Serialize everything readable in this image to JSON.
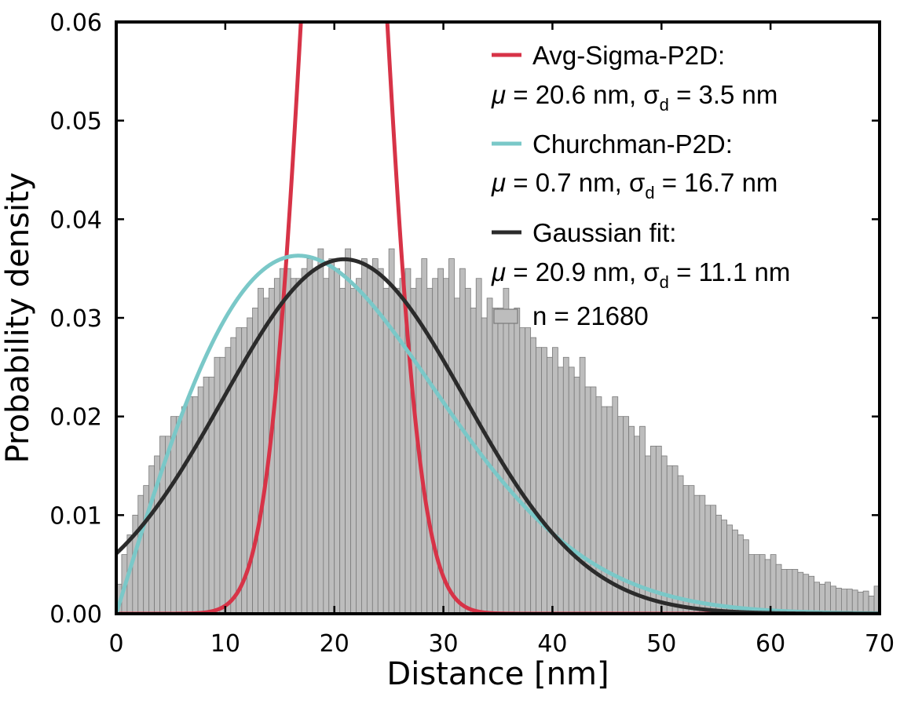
{
  "chart_data": {
    "type": "bar",
    "xlabel": "Distance [nm]",
    "ylabel": "Probability density",
    "xlim": [
      0,
      70
    ],
    "ylim": [
      0,
      0.06
    ],
    "x_ticks": [
      "0",
      "10",
      "20",
      "30",
      "40",
      "50",
      "60",
      "70"
    ],
    "y_ticks": [
      "0.00",
      "0.01",
      "0.02",
      "0.03",
      "0.04",
      "0.05",
      "0.06"
    ],
    "grid": false,
    "legend_position": "top-right",
    "histogram": {
      "name": "n = 21680",
      "color": "#bdbdbd",
      "edge_color": "#7a7a7a",
      "bin_width": 0.5,
      "x_start": 0,
      "values": [
        0.003,
        0.006,
        0.008,
        0.01,
        0.012,
        0.013,
        0.015,
        0.016,
        0.018,
        0.018,
        0.02,
        0.02,
        0.021,
        0.022,
        0.022,
        0.023,
        0.024,
        0.024,
        0.026,
        0.026,
        0.027,
        0.028,
        0.029,
        0.029,
        0.03,
        0.031,
        0.033,
        0.032,
        0.033,
        0.034,
        0.035,
        0.035,
        0.034,
        0.034,
        0.035,
        0.036,
        0.035,
        0.037,
        0.034,
        0.036,
        0.035,
        0.033,
        0.037,
        0.033,
        0.034,
        0.036,
        0.035,
        0.036,
        0.035,
        0.033,
        0.037,
        0.033,
        0.034,
        0.035,
        0.033,
        0.034,
        0.036,
        0.033,
        0.034,
        0.035,
        0.034,
        0.036,
        0.032,
        0.035,
        0.033,
        0.031,
        0.034,
        0.03,
        0.032,
        0.031,
        0.031,
        0.033,
        0.03,
        0.031,
        0.029,
        0.029,
        0.028,
        0.027,
        0.027,
        0.026,
        0.027,
        0.025,
        0.026,
        0.025,
        0.024,
        0.026,
        0.023,
        0.023,
        0.022,
        0.021,
        0.021,
        0.022,
        0.02,
        0.02,
        0.019,
        0.018,
        0.019,
        0.016,
        0.017,
        0.017,
        0.016,
        0.015,
        0.015,
        0.014,
        0.013,
        0.013,
        0.012,
        0.012,
        0.011,
        0.011,
        0.01,
        0.0095,
        0.009,
        0.0085,
        0.008,
        0.0075,
        0.006,
        0.006,
        0.006,
        0.0055,
        0.006,
        0.005,
        0.0045,
        0.0045,
        0.0045,
        0.0042,
        0.004,
        0.0038,
        0.0032,
        0.003,
        0.0032,
        0.0028,
        0.0026,
        0.0025,
        0.0025,
        0.0024,
        0.0022,
        0.0023,
        0.0018,
        0.0028,
        0.0026,
        0.0016,
        0.0016,
        0.0011,
        0.0012,
        0.0011,
        0.001,
        0.0009,
        0.0008,
        0.0007,
        0.0006,
        0.0005,
        0.0006,
        0.0004,
        0.0005,
        0.0003,
        0.0002,
        0.0002,
        0.0001,
        0.0001
      ]
    },
    "series": [
      {
        "name": "Avg-Sigma-P2D:",
        "color": "#d73347",
        "model": "p2d",
        "mu": 20.6,
        "sigma": 3.5,
        "params": "μ = 20.6 nm, σ_d = 3.5 nm"
      },
      {
        "name": "Churchman-P2D:",
        "color": "#7ac8c8",
        "model": "p2d",
        "mu": 0.7,
        "sigma": 16.7,
        "params": "μ = 0.7 nm, σ_d = 16.7 nm"
      },
      {
        "name": "Gaussian fit:",
        "color": "#2b2b2b",
        "model": "gaussian",
        "mu": 20.9,
        "sigma": 11.1,
        "params": "μ = 20.9 nm, σ_d = 11.1 nm"
      }
    ]
  },
  "legend": {
    "entries": [
      {
        "label": "Avg-Sigma-P2D:",
        "mu": "μ",
        "eq": " = 20.6 nm, ",
        "sigma": "σ",
        "sub": "d",
        "rest": " = 3.5 nm"
      },
      {
        "label": "Churchman-P2D:",
        "mu": "μ",
        "eq": " = 0.7 nm, ",
        "sigma": "σ",
        "sub": "d",
        "rest": " = 16.7 nm"
      },
      {
        "label": "Gaussian fit:",
        "mu": "μ",
        "eq": " = 20.9 nm, ",
        "sigma": "σ",
        "sub": "d",
        "rest": " = 11.1 nm"
      }
    ],
    "hist_label": "n = 21680"
  }
}
